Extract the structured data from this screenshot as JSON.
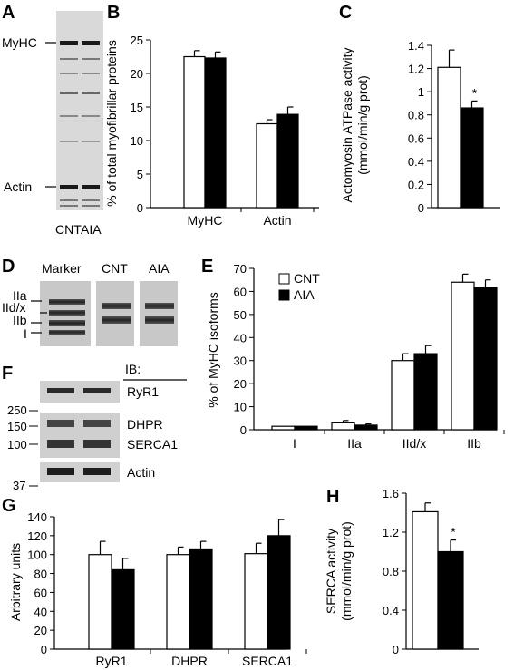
{
  "panels": {
    "A": "A",
    "B": "B",
    "C": "C",
    "D": "D",
    "E": "E",
    "F": "F",
    "G": "G",
    "H": "H"
  },
  "blot_a": {
    "band_labels": [
      "MyHC",
      "Actin"
    ],
    "lanes": [
      "CNT",
      "AIA"
    ]
  },
  "blot_d": {
    "lanes": [
      "Marker",
      "CNT",
      "AIA"
    ],
    "isoforms": [
      "IIa",
      "IId/x",
      "IIb",
      "I"
    ]
  },
  "blot_f": {
    "header": "IB:",
    "targets": [
      "RyR1",
      "DHPR",
      "SERCA1",
      "Actin"
    ],
    "mw": [
      "250",
      "150",
      "100",
      "37"
    ]
  },
  "legend": {
    "cnt": "CNT",
    "aia": "AIA"
  },
  "colors": {
    "cnt": "#ffffff",
    "aia": "#000000",
    "stroke": "#000000"
  },
  "chart_data": [
    {
      "panel": "B",
      "type": "bar",
      "ylabel": "% of total myofibrillar proteins",
      "ylim": [
        0,
        25
      ],
      "yticks": [
        0,
        5,
        10,
        15,
        20,
        25
      ],
      "categories": [
        "MyHC",
        "Actin"
      ],
      "series": [
        {
          "name": "CNT",
          "values": [
            22.5,
            12.5
          ],
          "errors": [
            0.9,
            0.6
          ]
        },
        {
          "name": "AIA",
          "values": [
            22.3,
            13.9
          ],
          "errors": [
            0.9,
            1.1
          ]
        }
      ]
    },
    {
      "panel": "C",
      "type": "bar",
      "ylabel": [
        "Actomyosin ATPase activity",
        "(mmol/min/g prot)"
      ],
      "ylim": [
        0,
        1.4
      ],
      "yticks": [
        0,
        0.2,
        0.4,
        0.6,
        0.8,
        1,
        1.2,
        1.4
      ],
      "categories": [
        ""
      ],
      "series": [
        {
          "name": "CNT",
          "values": [
            1.21
          ],
          "errors": [
            0.15
          ]
        },
        {
          "name": "AIA",
          "values": [
            0.86
          ],
          "errors": [
            0.06
          ]
        }
      ],
      "significance": [
        {
          "category": 0,
          "series": 1,
          "mark": "*"
        }
      ]
    },
    {
      "panel": "E",
      "type": "bar",
      "ylabel": "% of MyHC isoforms",
      "ylim": [
        0,
        70
      ],
      "yticks": [
        0,
        10,
        20,
        30,
        40,
        50,
        60,
        70
      ],
      "categories": [
        "I",
        "IIa",
        "IId/x",
        "IIb"
      ],
      "series": [
        {
          "name": "CNT",
          "values": [
            1.5,
            3.0,
            30,
            64
          ],
          "errors": [
            0,
            1.0,
            3.0,
            3.5
          ]
        },
        {
          "name": "AIA",
          "values": [
            1.5,
            2.0,
            33,
            61.5
          ],
          "errors": [
            0,
            0.5,
            3.5,
            3.5
          ]
        }
      ],
      "legend": "top-left"
    },
    {
      "panel": "G",
      "type": "bar",
      "ylabel": "Arbitrary units",
      "ylim": [
        0,
        140
      ],
      "yticks": [
        0,
        20,
        40,
        60,
        80,
        100,
        120,
        140
      ],
      "categories": [
        "RyR1",
        "DHPR",
        "SERCA1"
      ],
      "series": [
        {
          "name": "CNT",
          "values": [
            100,
            100,
            101
          ],
          "errors": [
            14,
            8,
            11
          ]
        },
        {
          "name": "AIA",
          "values": [
            84,
            106,
            120
          ],
          "errors": [
            12,
            8,
            17
          ]
        }
      ]
    },
    {
      "panel": "H",
      "type": "bar",
      "ylabel": [
        "SERCA activity",
        "(mmol/min/g prot)"
      ],
      "ylim": [
        0,
        1.6
      ],
      "yticks": [
        0,
        0.4,
        0.8,
        1.2,
        1.6
      ],
      "categories": [
        ""
      ],
      "series": [
        {
          "name": "CNT",
          "values": [
            1.41
          ],
          "errors": [
            0.09
          ]
        },
        {
          "name": "AIA",
          "values": [
            1.0
          ],
          "errors": [
            0.12
          ]
        }
      ],
      "significance": [
        {
          "category": 0,
          "series": 1,
          "mark": "*"
        }
      ]
    }
  ]
}
